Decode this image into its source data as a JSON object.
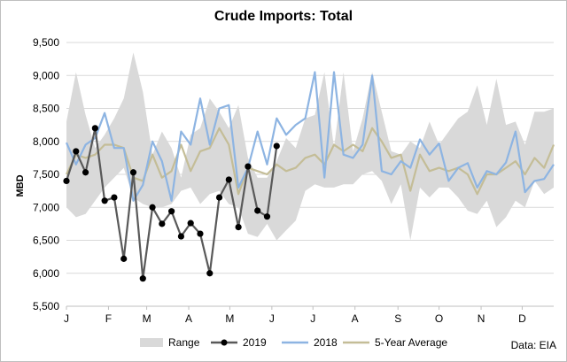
{
  "title": "Crude Imports: Total",
  "ylabel": "MBD",
  "source": "Data: EIA",
  "colors": {
    "range": "#d9d9d9",
    "y2019": "#595959",
    "y2019_marker": "#000000",
    "y2018": "#8db4e2",
    "avg5": "#c4bd97"
  },
  "legend": {
    "range": "Range",
    "y2019": "2019",
    "y2018": "2018",
    "avg5": "5-Year Average"
  },
  "chart_data": {
    "type": "line",
    "title": "Crude Imports: Total",
    "ylabel": "MBD",
    "xlabel": "",
    "ylim": [
      5500,
      9500
    ],
    "yticks": [
      5500,
      6000,
      6500,
      7000,
      7500,
      8000,
      8500,
      9000,
      9500
    ],
    "ytick_labels": [
      "5,500",
      "6,000",
      "6,500",
      "7,000",
      "7,500",
      "8,000",
      "8,500",
      "9,000",
      "9,500"
    ],
    "x_ticks": [
      {
        "label": "J",
        "week": 1
      },
      {
        "label": "F",
        "week": 5.4
      },
      {
        "label": "M",
        "week": 9.4
      },
      {
        "label": "A",
        "week": 13.8
      },
      {
        "label": "M",
        "week": 18.1
      },
      {
        "label": "J",
        "week": 22.5
      },
      {
        "label": "J",
        "week": 26.8
      },
      {
        "label": "A",
        "week": 31.2
      },
      {
        "label": "S",
        "week": 35.7
      },
      {
        "label": "O",
        "week": 40
      },
      {
        "label": "N",
        "week": 44.4
      },
      {
        "label": "D",
        "week": 48.7
      }
    ],
    "gridlines": "horizontal",
    "legend_position": "bottom",
    "x_weeks": 52,
    "series": [
      {
        "name": "Range",
        "kind": "band",
        "low": [
          7000,
          6850,
          6900,
          7100,
          7300,
          7450,
          7600,
          7150,
          7050,
          7000,
          7000,
          7050,
          7250,
          7300,
          7050,
          7200,
          7250,
          7050,
          7000,
          6600,
          6550,
          6750,
          6500,
          6650,
          6800,
          7250,
          7350,
          7300,
          7300,
          7350,
          7350,
          7500,
          7550,
          7400,
          7050,
          7350,
          6500,
          7300,
          7150,
          7300,
          7300,
          7150,
          6950,
          6900,
          7100,
          6700,
          6850,
          7100,
          7000,
          7400,
          7200,
          7300
        ],
        "high": [
          8300,
          9050,
          8400,
          7900,
          8100,
          8350,
          8650,
          9350,
          8750,
          7800,
          8150,
          7900,
          7450,
          8100,
          8200,
          8650,
          8450,
          8200,
          8550,
          7750,
          7450,
          7450,
          7700,
          8050,
          7900,
          8350,
          8400,
          9050,
          7900,
          9050,
          7850,
          8350,
          9050,
          8450,
          7850,
          7800,
          8000,
          7900,
          8300,
          7950,
          8150,
          8350,
          8450,
          8850,
          8250,
          8950,
          8250,
          8300,
          7950,
          8450,
          8450,
          8500
        ]
      },
      {
        "name": "2019",
        "kind": "line-markers",
        "values": [
          7400,
          7850,
          7530,
          8200,
          7100,
          7150,
          6220,
          7530,
          5920,
          7000,
          6750,
          6940,
          6560,
          6760,
          6600,
          6000,
          7150,
          7420,
          6700,
          7620,
          6950,
          6860,
          7930
        ]
      },
      {
        "name": "2018",
        "kind": "line",
        "values": [
          7980,
          7650,
          7950,
          8050,
          8430,
          7900,
          7900,
          7100,
          7340,
          8000,
          7700,
          7100,
          8150,
          7950,
          8650,
          7950,
          8500,
          8550,
          7300,
          7600,
          8150,
          7650,
          8350,
          8100,
          8250,
          8350,
          9050,
          7450,
          9050,
          7800,
          7750,
          7950,
          9000,
          7550,
          7500,
          7700,
          7600,
          8030,
          7800,
          7970,
          7400,
          7600,
          7670,
          7300,
          7550,
          7500,
          7680,
          8150,
          7230,
          7400,
          7430,
          7650
        ]
      },
      {
        "name": "5-Year Average",
        "kind": "line",
        "values": [
          7500,
          7800,
          7750,
          7800,
          7950,
          7950,
          7900,
          7450,
          7400,
          7800,
          7450,
          7550,
          7950,
          7550,
          7850,
          7900,
          8200,
          7950,
          7200,
          7600,
          7550,
          7500,
          7650,
          7550,
          7600,
          7750,
          7800,
          7650,
          7950,
          7850,
          7950,
          7850,
          8200,
          8000,
          7750,
          7800,
          7250,
          7800,
          7550,
          7600,
          7550,
          7600,
          7500,
          7200,
          7500,
          7500,
          7600,
          7700,
          7500,
          7750,
          7600,
          7950
        ]
      }
    ]
  }
}
